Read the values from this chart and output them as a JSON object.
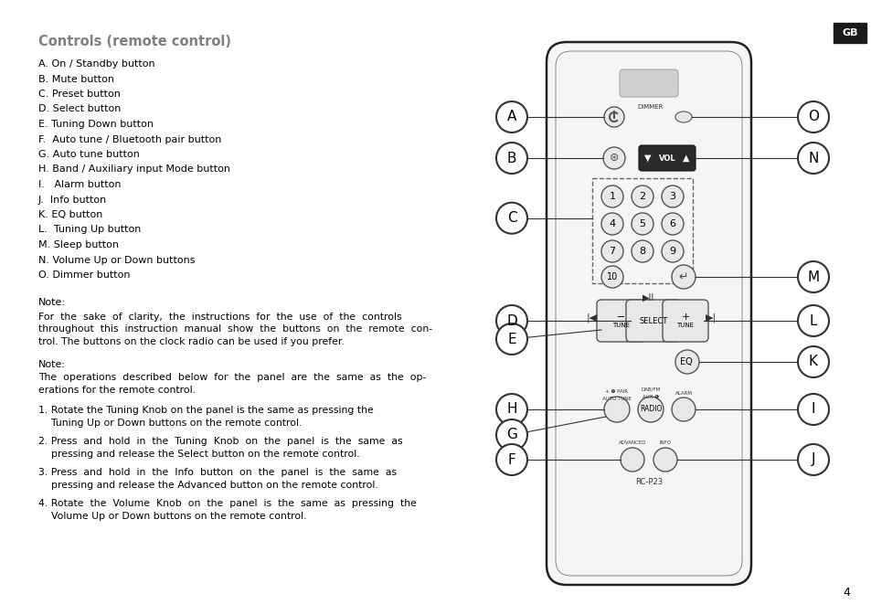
{
  "title": "Controls (remote control)",
  "title_color": "#808080",
  "title_fontsize": 10.5,
  "bg_color": "#ffffff",
  "text_color": "#000000",
  "labels_list": [
    "A. On / Standby button",
    "B. Mute button",
    "C. Preset button",
    "D. Select button",
    "E. Tuning Down button",
    "F.  Auto tune / Bluetooth pair button",
    "G. Auto tune button",
    "H. Band / Auxiliary input Mode button",
    "I.   Alarm button",
    "J.  Info button",
    "K. EQ button",
    "L.  Tuning Up button",
    "M. Sleep button",
    "N. Volume Up or Down buttons",
    "O. Dimmer button"
  ],
  "note1_title": "Note:",
  "note1_body": "For  the  sake  of  clarity,  the  instructions  for  the  use  of  the  controls\nthroughout  this  instruction  manual  show  the  buttons  on  the  remote  con-\ntrol. The buttons on the clock radio can be used if you prefer.",
  "note2_title": "Note:",
  "note2_body": "The  operations  described  below  for  the  panel  are  the  same  as  the  op-\nerations for the remote control.",
  "numbered_items": [
    "Rotate the Tuning Knob on the panel is the same as pressing the\n    Tuning Up or Down buttons on the remote control.",
    "Press  and  hold  in  the  Tuning  Knob  on  the  panel  is  the  same  as\n    pressing and release the Select button on the remote control.",
    "Press  and  hold  in  the  Info  button  on  the  panel  is  the  same  as\n    pressing and release the Advanced button on the remote control.",
    "Rotate  the  Volume  Knob  on  the  panel  is  the  same  as  pressing  the\n    Volume Up or Down buttons on the remote control."
  ],
  "page_number": "4",
  "gb_box_color": "#1a1a1a",
  "gb_text_color": "#ffffff",
  "remote_outline_color": "#222222",
  "remote_bg_color": "#f5f5f5",
  "circle_label_color": "#000000",
  "circle_label_bg": "#ffffff",
  "dashed_box_color": "#666666",
  "button_face": "#e8e8e8",
  "button_edge": "#555555",
  "vol_bg": "#2a2a2a",
  "vol_text": "#ffffff"
}
